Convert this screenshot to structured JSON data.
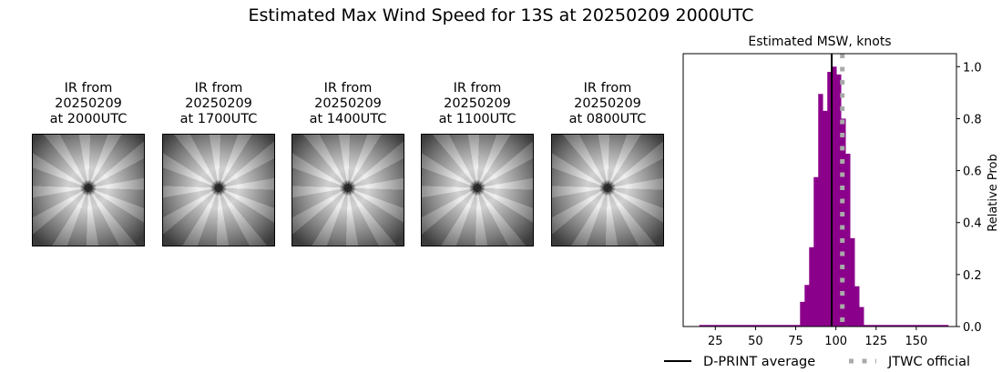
{
  "title": "Estimated Max Wind Speed for 13S at 20250209 2000UTC",
  "panels": [
    {
      "line1": "IR from",
      "line2": "20250209",
      "line3": "at 2000UTC"
    },
    {
      "line1": "IR from",
      "line2": "20250209",
      "line3": "at 1700UTC"
    },
    {
      "line1": "IR from",
      "line2": "20250209",
      "line3": "at 1400UTC"
    },
    {
      "line1": "IR from",
      "line2": "20250209",
      "line3": "at 1100UTC"
    },
    {
      "line1": "IR from",
      "line2": "20250209",
      "line3": "at 0800UTC"
    }
  ],
  "chart_data": {
    "type": "bar",
    "title": "Estimated MSW, knots",
    "xlabel": "",
    "ylabel": "Relative Prob",
    "xlim": [
      5,
      175
    ],
    "ylim": [
      0,
      1.05
    ],
    "xticks": [
      25,
      50,
      75,
      100,
      125,
      150
    ],
    "yticks": [
      0.0,
      0.2,
      0.4,
      0.6,
      0.8,
      1.0
    ],
    "grid": false,
    "bar_color": "#8b008b",
    "baseline_range": [
      15,
      170
    ],
    "bin_start": 77.7,
    "bin_end": 117.3,
    "values": [
      0.095,
      0.16,
      0.305,
      0.575,
      0.895,
      0.83,
      0.98,
      1.0,
      0.97,
      0.8,
      0.665,
      0.34,
      0.155,
      0.075
    ],
    "dprint_average": 97.4,
    "jtwc_official": 104,
    "legend": {
      "placement": "bottom",
      "items": [
        {
          "label": "D-PRINT average",
          "color": "#000000",
          "style": "solid"
        },
        {
          "label": "JTWC official",
          "color": "#aaaaaa",
          "style": "dotted"
        }
      ]
    }
  }
}
